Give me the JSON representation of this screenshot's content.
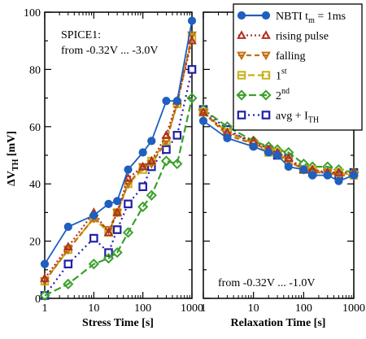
{
  "colors": {
    "nbti": "#1f5fbf",
    "rising": "#b03020",
    "falling": "#c07010",
    "first": "#c8b018",
    "second": "#3ca02c",
    "avg": "#2020a8"
  },
  "chart_data": [
    {
      "type": "line",
      "xscale": "log",
      "xlim": [
        1,
        1000
      ],
      "ylim": [
        0,
        100
      ],
      "xlabel": "Stress Time [s]",
      "ylabel": "ΔV_TH [mV]",
      "ylabel_parts": {
        "main": "ΔV",
        "sub": "TH",
        "unit": " [mV]"
      },
      "xticks": [
        1,
        10,
        100,
        1000
      ],
      "xtick_labels": [
        "1",
        "10",
        "100",
        "1000"
      ],
      "yticks": [
        0,
        20,
        40,
        60,
        80,
        100
      ],
      "ytick_labels": [
        "0",
        "20",
        "40",
        "60",
        "80",
        "100"
      ],
      "annotation": {
        "line1": "SPICE1:",
        "line2": "from -0.32V ... -3.0V"
      },
      "series": [
        {
          "key": "nbti",
          "name": "NBTI t_m = 1ms",
          "x": [
            1,
            3,
            10,
            20,
            30,
            50,
            100,
            150,
            300,
            500,
            1000
          ],
          "y": [
            12,
            25,
            29,
            33,
            34,
            45,
            51,
            55,
            69,
            69,
            97
          ]
        },
        {
          "key": "rising",
          "name": "rising pulse",
          "x": [
            1,
            3,
            10,
            20,
            30,
            50,
            100,
            150,
            300,
            500,
            1000
          ],
          "y": [
            7,
            18,
            30,
            23,
            30,
            42,
            46,
            48,
            57,
            69,
            90
          ]
        },
        {
          "key": "falling",
          "name": "falling",
          "x": [
            1,
            3,
            10,
            20,
            30,
            50,
            100,
            150,
            300,
            500,
            1000
          ],
          "y": [
            6,
            17,
            28,
            24,
            30,
            40,
            46,
            47,
            55,
            68,
            92
          ]
        },
        {
          "key": "first",
          "name": "1st",
          "x": [
            1,
            3,
            10,
            20,
            30,
            50,
            100,
            150,
            300,
            500,
            1000
          ],
          "y": [
            6,
            17,
            28,
            23,
            30,
            40,
            45,
            48,
            55,
            68,
            91
          ]
        },
        {
          "key": "second",
          "name": "2nd",
          "x": [
            1,
            3,
            10,
            20,
            30,
            50,
            100,
            150,
            300,
            500,
            1000
          ],
          "y": [
            1,
            5,
            12,
            14,
            16,
            23,
            32,
            36,
            48,
            47,
            70
          ]
        },
        {
          "key": "avg",
          "name": "avg + I_TH",
          "x": [
            1,
            3,
            10,
            20,
            30,
            50,
            100,
            150,
            300,
            500,
            1000
          ],
          "y": [
            1,
            12,
            21,
            16,
            24,
            33,
            39,
            46,
            52,
            57,
            80
          ]
        }
      ]
    },
    {
      "type": "line",
      "xscale": "log",
      "xlim": [
        1,
        1000
      ],
      "ylim": [
        0,
        100
      ],
      "xlabel": "Relaxation Time [s]",
      "xticks": [
        1,
        10,
        100,
        1000
      ],
      "xtick_labels": [
        "1",
        "10",
        "100",
        "1000"
      ],
      "annotation": {
        "line1": "from -0.32V ... -1.0V"
      },
      "series": [
        {
          "key": "nbti",
          "name": "NBTI t_m = 1ms",
          "x": [
            1,
            3,
            10,
            20,
            30,
            50,
            100,
            150,
            300,
            500,
            1000
          ],
          "y": [
            62,
            56,
            53,
            51,
            50,
            46,
            45,
            43,
            43,
            41,
            43
          ]
        },
        {
          "key": "rising",
          "name": "rising pulse",
          "x": [
            1,
            3,
            10,
            20,
            30,
            50,
            100,
            150,
            300,
            500,
            1000
          ],
          "y": [
            65,
            58,
            55,
            52,
            51,
            49,
            45,
            45,
            44,
            44,
            44
          ]
        },
        {
          "key": "falling",
          "name": "falling",
          "x": [
            1,
            3,
            10,
            20,
            30,
            50,
            100,
            150,
            300,
            500,
            1000
          ],
          "y": [
            65,
            57,
            54,
            52,
            50,
            48,
            45,
            44,
            44,
            43,
            43
          ]
        },
        {
          "key": "first",
          "name": "1st",
          "x": [
            1,
            3,
            10,
            20,
            30,
            50,
            100,
            150,
            300,
            500,
            1000
          ],
          "y": [
            65,
            58,
            54,
            51,
            51,
            48,
            45,
            45,
            44,
            44,
            43
          ]
        },
        {
          "key": "second",
          "name": "2nd",
          "x": [
            1,
            3,
            10,
            20,
            30,
            50,
            100,
            150,
            300,
            500,
            1000
          ],
          "y": [
            66,
            60,
            55,
            53,
            52,
            51,
            47,
            46,
            46,
            45,
            44
          ]
        },
        {
          "key": "avg",
          "name": "avg + I_TH",
          "x": [
            1,
            3,
            10,
            20,
            30,
            50,
            100,
            150,
            300,
            500,
            1000
          ],
          "y": [
            66,
            59,
            54,
            52,
            50,
            49,
            45,
            44,
            44,
            43,
            44
          ]
        }
      ]
    }
  ],
  "legend": {
    "placement": "top-right",
    "items": [
      {
        "key": "nbti",
        "text": "NBTI t",
        "sub": "m",
        "tail": "= 1ms",
        "marker": "circle",
        "dash": ""
      },
      {
        "key": "rising",
        "text": "rising pulse",
        "marker": "triangle-up",
        "dash": "2,3"
      },
      {
        "key": "falling",
        "text": "falling",
        "marker": "triangle-down",
        "dash": "6,4"
      },
      {
        "key": "first",
        "text": "1",
        "sup": "st",
        "marker": "square",
        "dash": "8,4"
      },
      {
        "key": "second",
        "text": "2",
        "sup": "nd",
        "marker": "diamond",
        "dash": "9,4"
      },
      {
        "key": "avg",
        "text": "avg + I",
        "sub": "TH",
        "marker": "square-open",
        "dash": "2,4"
      }
    ]
  }
}
